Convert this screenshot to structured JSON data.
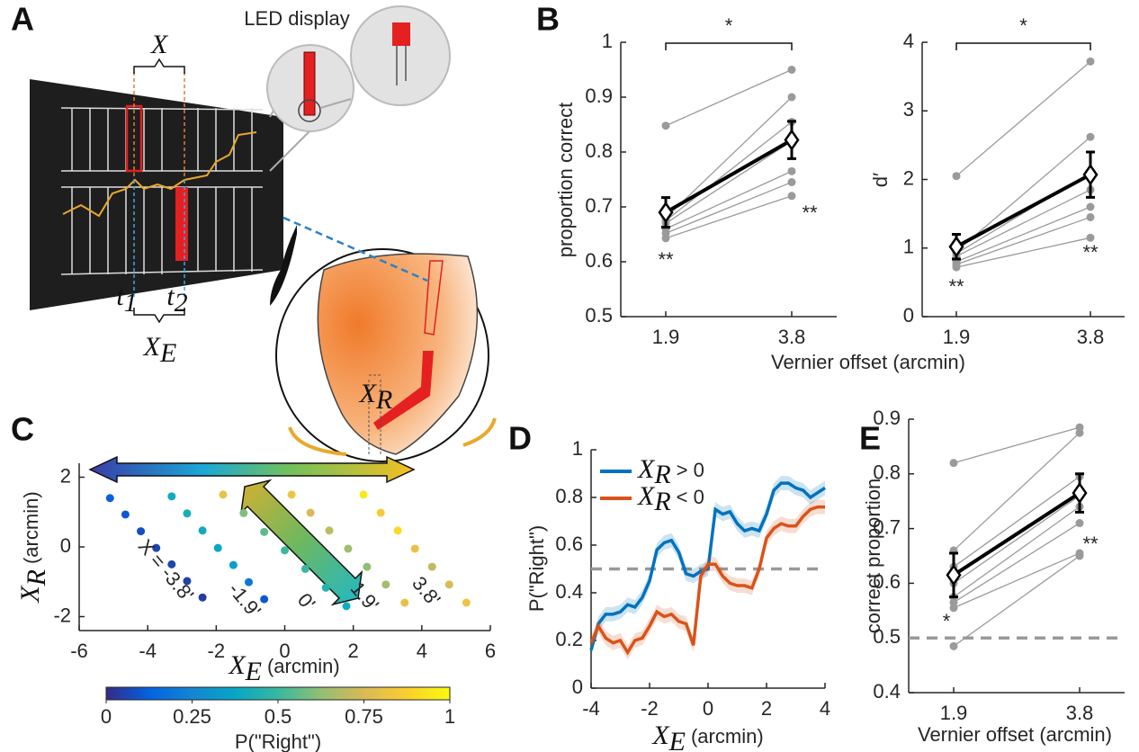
{
  "panel_labels": [
    "A",
    "B",
    "C",
    "D",
    "E"
  ],
  "figure_a": {
    "led_label": "LED display",
    "x": "X",
    "t1": {
      "symbol": "t",
      "subscript": "1"
    },
    "t2": {
      "symbol": "t",
      "subscript": "2"
    },
    "xe": {
      "symbol": "X",
      "subscript": "E"
    },
    "xr": {
      "symbol": "X",
      "subscript": "R"
    }
  },
  "chart_data": [
    {
      "type": "line",
      "ylabel": "proportion correct",
      "xlabel": "Vernier offset (arcmin)",
      "categories": [
        "1.9",
        "3.8"
      ],
      "ylim": [
        0.5,
        1
      ],
      "yticks": [
        0.5,
        0.6,
        0.7,
        0.8,
        0.9,
        1
      ],
      "series": [
        {
          "color": "#9a9a9a",
          "values": [
            0.848,
            0.95
          ]
        },
        {
          "color": "#9a9a9a",
          "values": [
            0.68,
            0.9
          ]
        },
        {
          "color": "#9a9a9a",
          "values": [
            0.675,
            0.855
          ]
        },
        {
          "color": "#9a9a9a",
          "values": [
            0.67,
            0.82
          ]
        },
        {
          "color": "#9a9a9a",
          "values": [
            0.66,
            0.765
          ]
        },
        {
          "color": "#9a9a9a",
          "values": [
            0.652,
            0.745
          ]
        },
        {
          "color": "#9a9a9a",
          "values": [
            0.643,
            0.72
          ]
        }
      ],
      "mean": {
        "color": "#000000",
        "values": [
          0.69,
          0.822
        ],
        "errors": [
          0.027,
          0.034
        ]
      },
      "annotations": [
        "*",
        "**",
        "**"
      ]
    },
    {
      "type": "line",
      "ylabel": "d′",
      "categories": [
        "1.9",
        "3.8"
      ],
      "ylim": [
        0,
        4
      ],
      "yticks": [
        0,
        1,
        2,
        3,
        4
      ],
      "series": [
        {
          "color": "#9a9a9a",
          "values": [
            2.05,
            3.72
          ]
        },
        {
          "color": "#9a9a9a",
          "values": [
            0.95,
            2.62
          ]
        },
        {
          "color": "#9a9a9a",
          "values": [
            0.92,
            2.1
          ]
        },
        {
          "color": "#9a9a9a",
          "values": [
            0.88,
            1.85
          ]
        },
        {
          "color": "#9a9a9a",
          "values": [
            0.8,
            1.6
          ]
        },
        {
          "color": "#9a9a9a",
          "values": [
            0.76,
            1.45
          ]
        },
        {
          "color": "#9a9a9a",
          "values": [
            0.72,
            1.15
          ]
        }
      ],
      "mean": {
        "color": "#000000",
        "values": [
          1.02,
          2.07
        ],
        "errors": [
          0.18,
          0.33
        ]
      },
      "annotations": [
        "*",
        "**",
        "**"
      ]
    },
    {
      "type": "scatter",
      "xlim": [
        -6,
        6
      ],
      "xticks": [
        -6,
        -4,
        -2,
        0,
        2,
        4,
        6
      ],
      "ylim": [
        -2.4,
        2.4
      ],
      "yticks": [
        -2,
        0,
        2
      ],
      "xlabel": {
        "symbol": "X",
        "subscript": "E",
        "text": "(arcmin)"
      },
      "ylabel": {
        "symbol": "X",
        "subscript": "R",
        "text": "(arcmin)"
      },
      "colormap": [
        "#352a87",
        "#0363e1",
        "#1485d4",
        "#06a7c6",
        "#38b99e",
        "#92bf73",
        "#d9ba56",
        "#fcce2e",
        "#f9fb0e"
      ],
      "colorbar": {
        "lim": [
          0,
          1
        ],
        "ticks": [
          0,
          0.25,
          0.5,
          0.75,
          1
        ],
        "label": "P(\"Right\")"
      },
      "series": [
        {
          "name": "X = -3.8'",
          "x": [
            -5.1,
            -4.65,
            -4.2,
            -3.75,
            -3.3,
            -2.85,
            -2.4
          ],
          "y": [
            1.4,
            0.93,
            0.45,
            -0.03,
            -0.5,
            -0.98,
            -1.45
          ],
          "values": [
            0.12,
            0.1,
            0.08,
            0.06,
            0.06,
            0.05,
            0.04
          ]
        },
        {
          "name": "-1.9'",
          "x": [
            -3.3,
            -2.85,
            -2.4,
            -1.95,
            -1.5,
            -1.05,
            -0.6
          ],
          "y": [
            1.45,
            0.96,
            0.47,
            -0.03,
            -0.52,
            -1.01,
            -1.5
          ],
          "values": [
            0.4,
            0.42,
            0.4,
            0.38,
            0.35,
            0.2,
            0.1
          ]
        },
        {
          "name": "0'",
          "x": [
            -1.8,
            -1.2,
            -0.6,
            0,
            0.6,
            1.2,
            1.8
          ],
          "y": [
            1.5,
            0.97,
            0.43,
            -0.1,
            -0.63,
            -1.17,
            -1.7
          ],
          "values": [
            0.8,
            0.6,
            0.55,
            0.5,
            0.5,
            0.45,
            0.4
          ]
        },
        {
          "name": "1.9'",
          "x": [
            0.2,
            0.75,
            1.3,
            1.85,
            2.4,
            2.95,
            3.5
          ],
          "y": [
            1.5,
            0.98,
            0.47,
            -0.05,
            -0.57,
            -1.08,
            -1.6
          ],
          "values": [
            0.82,
            0.75,
            0.7,
            0.65,
            0.62,
            0.65,
            0.8
          ]
        },
        {
          "name": "3.8'",
          "x": [
            2.3,
            2.8,
            3.3,
            3.8,
            4.3,
            4.8,
            5.3
          ],
          "y": [
            1.5,
            0.98,
            0.47,
            -0.05,
            -0.57,
            -1.08,
            -1.6
          ],
          "values": [
            0.95,
            0.85,
            0.9,
            0.8,
            0.7,
            0.75,
            0.82
          ]
        }
      ]
    },
    {
      "type": "line",
      "xlim": [
        -4,
        4
      ],
      "xticks": [
        -4,
        -2,
        0,
        2,
        4
      ],
      "ylim": [
        0,
        1
      ],
      "yticks": [
        0,
        0.2,
        0.4,
        0.6,
        0.8,
        1
      ],
      "ylabel": "P(\"Right\")",
      "xlabel": {
        "symbol": "X",
        "subscript": "E",
        "text": "(arcmin)"
      },
      "hline": 0.5,
      "x": [
        -4,
        -3.75,
        -3.5,
        -3.25,
        -3,
        -2.75,
        -2.5,
        -2.25,
        -2,
        -1.75,
        -1.5,
        -1.25,
        -1,
        -0.75,
        -0.5,
        -0.25,
        0,
        0.25,
        0.5,
        0.75,
        1,
        1.25,
        1.5,
        1.75,
        2,
        2.25,
        2.5,
        2.75,
        3,
        3.25,
        3.5,
        3.75,
        4
      ],
      "series": [
        {
          "symbol": "X",
          "subscript": "R",
          "name": "> 0",
          "color": "#0072bd",
          "values": [
            0.16,
            0.27,
            0.31,
            0.31,
            0.32,
            0.35,
            0.34,
            0.38,
            0.45,
            0.58,
            0.61,
            0.62,
            0.57,
            0.48,
            0.47,
            0.49,
            0.5,
            0.75,
            0.73,
            0.74,
            0.69,
            0.66,
            0.67,
            0.66,
            0.73,
            0.83,
            0.86,
            0.86,
            0.84,
            0.83,
            0.8,
            0.82,
            0.84
          ],
          "errors": [
            0.03,
            0.03,
            0.03,
            0.03,
            0.03,
            0.03,
            0.03,
            0.03,
            0.03,
            0.03,
            0.03,
            0.03,
            0.03,
            0.03,
            0.03,
            0.03,
            0.03,
            0.03,
            0.03,
            0.03,
            0.03,
            0.03,
            0.03,
            0.03,
            0.03,
            0.03,
            0.03,
            0.03,
            0.03,
            0.03,
            0.03,
            0.03,
            0.03
          ]
        },
        {
          "symbol": "X",
          "subscript": "R",
          "name": "< 0",
          "color": "#d95319",
          "values": [
            0.19,
            0.26,
            0.21,
            0.19,
            0.2,
            0.15,
            0.2,
            0.21,
            0.26,
            0.32,
            0.3,
            0.31,
            0.28,
            0.27,
            0.18,
            0.47,
            0.52,
            0.52,
            0.47,
            0.44,
            0.43,
            0.43,
            0.42,
            0.5,
            0.63,
            0.67,
            0.69,
            0.68,
            0.68,
            0.72,
            0.75,
            0.76,
            0.76
          ],
          "errors": [
            0.03,
            0.03,
            0.03,
            0.03,
            0.03,
            0.03,
            0.03,
            0.03,
            0.03,
            0.03,
            0.03,
            0.03,
            0.03,
            0.03,
            0.03,
            0.03,
            0.03,
            0.03,
            0.03,
            0.03,
            0.03,
            0.03,
            0.03,
            0.03,
            0.03,
            0.03,
            0.03,
            0.03,
            0.03,
            0.03,
            0.03,
            0.03,
            0.03
          ]
        }
      ]
    },
    {
      "type": "line",
      "ylabel": "correct proportion",
      "xlabel": "Vernier offset (arcmin)",
      "categories": [
        "1.9",
        "3.8"
      ],
      "ylim": [
        0.4,
        0.9
      ],
      "yticks": [
        0.4,
        0.5,
        0.6,
        0.7,
        0.8,
        0.9
      ],
      "hline": 0.5,
      "series": [
        {
          "color": "#9a9a9a",
          "values": [
            0.82,
            0.885
          ]
        },
        {
          "color": "#9a9a9a",
          "values": [
            0.66,
            0.875
          ]
        },
        {
          "color": "#9a9a9a",
          "values": [
            0.63,
            0.795
          ]
        },
        {
          "color": "#9a9a9a",
          "values": [
            0.6,
            0.76
          ]
        },
        {
          "color": "#9a9a9a",
          "values": [
            0.575,
            0.74
          ]
        },
        {
          "color": "#9a9a9a",
          "values": [
            0.565,
            0.71
          ]
        },
        {
          "color": "#9a9a9a",
          "values": [
            0.555,
            0.655
          ]
        },
        {
          "color": "#9a9a9a",
          "values": [
            0.485,
            0.65
          ]
        }
      ],
      "mean": {
        "color": "#000000",
        "values": [
          0.615,
          0.765
        ],
        "errors": [
          0.04,
          0.035
        ]
      },
      "annotations": [
        "*",
        "**"
      ]
    }
  ]
}
